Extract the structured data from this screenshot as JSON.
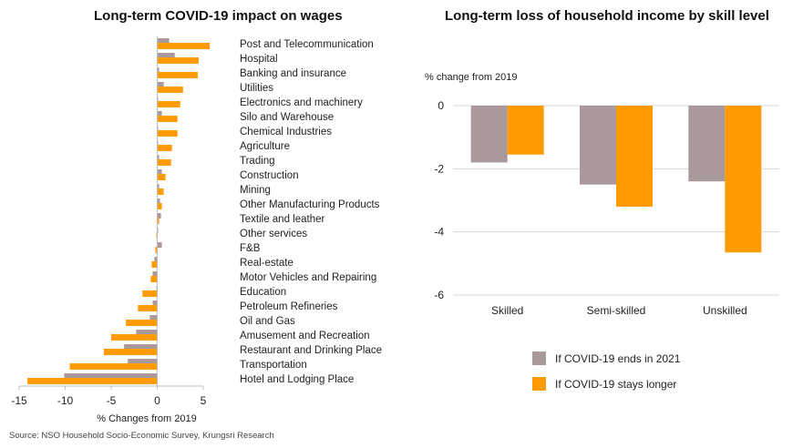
{
  "colors": {
    "gray": "#a9999a",
    "orange": "#ff9a00",
    "axis": "#bfbfbf",
    "grid": "#d9d9d9"
  },
  "source": "Source: NSO Household Socio-Economic Survey, Krungsri Research",
  "chart_data": [
    {
      "type": "bar",
      "orientation": "horizontal",
      "title": "Long-term COVID-19 impact on wages",
      "xlabel": "% Changes from 2019",
      "ylabel": "",
      "xlim": [
        -15,
        5
      ],
      "xticks": [
        "-15",
        "-10",
        "-5",
        "0",
        "5"
      ],
      "grid": false,
      "categories": [
        "Post and Telecommunication",
        "Hospital",
        "Banking and insurance",
        "Utilities",
        "Electronics and machinery",
        "Silo and Warehouse",
        "Chemical Industries",
        "Agriculture",
        "Trading",
        "Construction",
        "Mining",
        "Other Manufacturing Products",
        "Textile and leather",
        "Other services",
        "F&B",
        "Real-estate",
        "Motor Vehicles and Repairing",
        "Education",
        "Petroleum Refineries",
        "Oil and Gas",
        "Amusement and Recreation",
        "Restaurant and Drinking Place",
        "Transportation",
        "Hotel and Lodging Place"
      ],
      "series": [
        {
          "color": "#a9999a",
          "values": [
            1.3,
            1.9,
            0.2,
            0.7,
            0.1,
            0.5,
            0.1,
            0.1,
            0.2,
            0.5,
            0.2,
            0.3,
            0.4,
            0.1,
            0.5,
            -0.3,
            -0.5,
            -0.1,
            -0.5,
            -0.8,
            -2.3,
            -3.6,
            -3.2,
            -10.1
          ]
        },
        {
          "color": "#ff9a00",
          "values": [
            5.7,
            4.5,
            4.4,
            2.8,
            2.5,
            2.2,
            2.2,
            1.6,
            1.5,
            0.9,
            0.7,
            0.5,
            0.2,
            -0.1,
            -0.2,
            -0.6,
            -0.7,
            -1.6,
            -2.1,
            -3.4,
            -5.0,
            -5.8,
            -9.5,
            -14.1
          ]
        }
      ]
    },
    {
      "type": "bar",
      "title": "Long-term loss of household income by skill level",
      "ylabel": "% change from 2019",
      "xlabel": "",
      "ylim": [
        -6,
        0
      ],
      "yticks": [
        "0",
        "-2",
        "-4",
        "-6"
      ],
      "grid": true,
      "legend": "bottom",
      "categories": [
        "Skilled",
        "Semi-skilled",
        "Unskilled"
      ],
      "series": [
        {
          "name": "If COVID-19 ends in 2021",
          "color": "#a9999a",
          "values": [
            -1.8,
            -2.5,
            -2.4
          ]
        },
        {
          "name": "If COVID-19 stays longer",
          "color": "#ff9a00",
          "values": [
            -1.55,
            -3.2,
            -4.65
          ]
        }
      ]
    }
  ]
}
